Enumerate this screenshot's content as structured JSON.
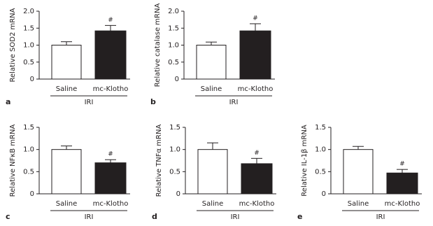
{
  "chart_data": [
    {
      "type": "bar",
      "panel_label": "a",
      "ylabel": "Relative SOD2 mRNA",
      "categories": [
        "Saline",
        "mc-Klotho"
      ],
      "values": [
        1.0,
        1.42
      ],
      "errors": [
        0.1,
        0.16
      ],
      "value_annotations": [
        null,
        "#"
      ],
      "group_label": "IRI",
      "colors": [
        "#ffffff",
        "#231f20"
      ],
      "ylim": [
        0,
        2
      ],
      "yticks": [
        0,
        0.5,
        {
          "value": 1,
          "label": "1.0"
        },
        1.5,
        {
          "value": 2,
          "label": "2.0"
        }
      ]
    },
    {
      "type": "bar",
      "panel_label": "b",
      "ylabel": "Relative catalase mRNA",
      "categories": [
        "Saline",
        "mc-Klotho"
      ],
      "values": [
        1.0,
        1.42
      ],
      "errors": [
        0.09,
        0.21
      ],
      "value_annotations": [
        null,
        "#"
      ],
      "group_label": "IRI",
      "colors": [
        "#ffffff",
        "#231f20"
      ],
      "ylim": [
        0,
        2
      ],
      "yticks": [
        0,
        0.5,
        {
          "value": 1,
          "label": "1.0"
        },
        1.5,
        {
          "value": 2,
          "label": "2.0"
        }
      ]
    },
    {
      "type": "bar",
      "panel_label": "c",
      "ylabel": "Relative NFκB mRNA",
      "categories": [
        "Saline",
        "mc-Klotho"
      ],
      "values": [
        1.0,
        0.7
      ],
      "errors": [
        0.08,
        0.07
      ],
      "value_annotations": [
        null,
        "#"
      ],
      "group_label": "IRI",
      "colors": [
        "#ffffff",
        "#231f20"
      ],
      "ylim": [
        0,
        1.5
      ],
      "yticks": [
        0,
        0.5,
        {
          "value": 1,
          "label": "1.0"
        },
        1.5
      ]
    },
    {
      "type": "bar",
      "panel_label": "d",
      "ylabel": "Relative TNFα mRNA",
      "categories": [
        "Saline",
        "mc-Klotho"
      ],
      "values": [
        1.0,
        0.68
      ],
      "errors": [
        0.15,
        0.12
      ],
      "value_annotations": [
        null,
        "#"
      ],
      "group_label": "IRI",
      "colors": [
        "#ffffff",
        "#231f20"
      ],
      "ylim": [
        0,
        1.5
      ],
      "yticks": [
        0,
        0.5,
        {
          "value": 1,
          "label": "1.0"
        },
        1.5
      ]
    },
    {
      "type": "bar",
      "panel_label": "e",
      "ylabel": "Relative IL-1β mRNA",
      "categories": [
        "Saline",
        "mc-Klotho"
      ],
      "values": [
        1.0,
        0.47
      ],
      "errors": [
        0.07,
        0.08
      ],
      "value_annotations": [
        null,
        "#"
      ],
      "group_label": "IRI",
      "colors": [
        "#ffffff",
        "#231f20"
      ],
      "ylim": [
        0,
        1.5
      ],
      "yticks": [
        0,
        0.5,
        {
          "value": 1,
          "label": "1.0"
        },
        1.5
      ]
    }
  ]
}
